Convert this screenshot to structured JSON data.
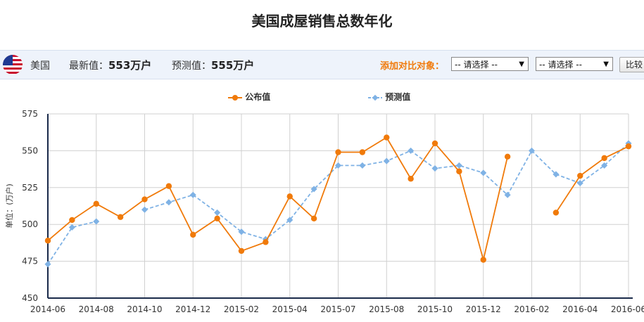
{
  "title": "美国成屋销售总数年化",
  "info": {
    "country": "美国",
    "latest_label": "最新值：",
    "latest_value": "553万户",
    "forecast_label": "预测值：",
    "forecast_value": "555万户",
    "compare_label": "添加对比对象：",
    "select1": "-- 请选择 --",
    "select2": "-- 请选择 --",
    "compare_button": "比较"
  },
  "colors": {
    "published": "#f07a0a",
    "forecast": "#7fb2e5"
  },
  "chart_data": {
    "type": "line",
    "ylabel": "单位：(万户)",
    "ylim": [
      450,
      575
    ],
    "yticks": [
      450,
      475,
      500,
      525,
      550,
      575
    ],
    "xtick_labels": [
      "2014-06",
      "2014-08",
      "2014-10",
      "2014-12",
      "2015-02",
      "2015-04",
      "2015-07",
      "2015-08",
      "2015-10",
      "2015-12",
      "2016-02",
      "2016-04",
      "2016-06"
    ],
    "x": [
      "2014-06",
      "2014-07",
      "2014-08",
      "2014-09",
      "2014-10",
      "2014-11",
      "2014-12",
      "2015-01",
      "2015-02",
      "2015-03",
      "2015-04",
      "2015-05",
      "2015-06",
      "2015-07",
      "2015-08",
      "2015-09",
      "2015-10",
      "2015-11",
      "2015-12",
      "2016-01",
      "2016-02",
      "2016-03",
      "2016-04",
      "2016-05",
      "2016-06"
    ],
    "grid": true,
    "legend_position": "top-center",
    "series": [
      {
        "name": "公布值",
        "values": [
          489,
          503,
          514,
          505,
          517,
          526,
          493,
          504,
          482,
          488,
          519,
          504,
          549,
          549,
          559,
          531,
          555,
          536,
          476,
          546,
          null,
          508,
          533,
          545,
          553
        ]
      },
      {
        "name": "预测值",
        "values": [
          473,
          498,
          502,
          null,
          510,
          515,
          520,
          508,
          495,
          490,
          503,
          524,
          540,
          540,
          543,
          550,
          538,
          540,
          535,
          520,
          550,
          534,
          528,
          540,
          555
        ]
      }
    ]
  }
}
